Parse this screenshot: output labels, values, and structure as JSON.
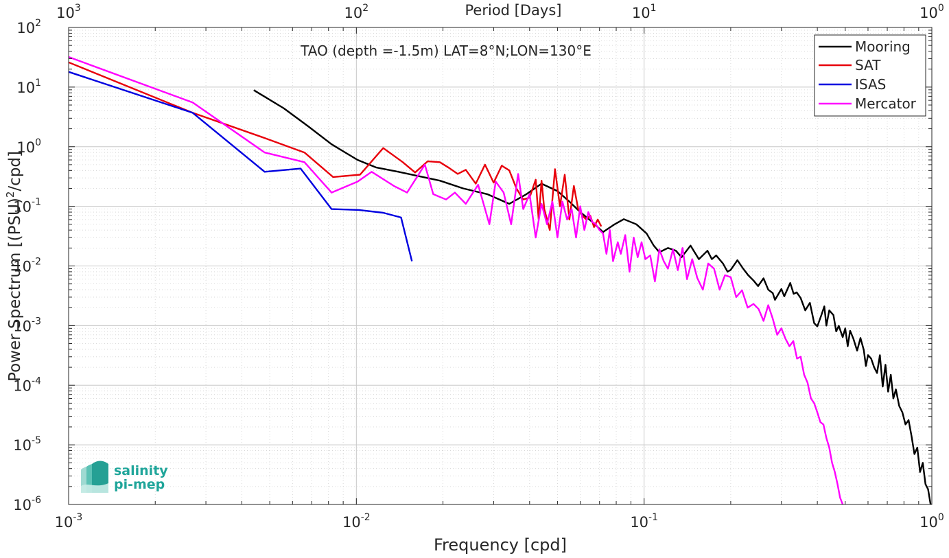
{
  "chart_data": {
    "type": "line",
    "title": "TAO (depth =-1.5m) LAT=8°N;LON=130°E",
    "xlabel": "Frequency [cpd]",
    "ylabel_main": "Power Spectrum [(PSU)",
    "ylabel_sup": "2",
    "ylabel_tail": "/cpd]",
    "x2label": "Period [Days]",
    "xscale": "log",
    "yscale": "log",
    "xlim": [
      0.001,
      1
    ],
    "ylim": [
      1e-06,
      100
    ],
    "grid": true,
    "legend_position": "top-right",
    "x_ticks": [
      {
        "base": "10",
        "exp": "-3",
        "value": 0.001
      },
      {
        "base": "10",
        "exp": "-2",
        "value": 0.01
      },
      {
        "base": "10",
        "exp": "-1",
        "value": 0.1
      },
      {
        "base": "10",
        "exp": "0",
        "value": 1
      }
    ],
    "x2_ticks": [
      {
        "base": "10",
        "exp": "3",
        "value": 0.001
      },
      {
        "base": "10",
        "exp": "2",
        "value": 0.01
      },
      {
        "base": "10",
        "exp": "1",
        "value": 0.1
      },
      {
        "base": "10",
        "exp": "0",
        "value": 1
      }
    ],
    "y_ticks": [
      {
        "base": "10",
        "exp": "2",
        "value": 100
      },
      {
        "base": "10",
        "exp": "1",
        "value": 10
      },
      {
        "base": "10",
        "exp": "0",
        "value": 1
      },
      {
        "base": "10",
        "exp": "-1",
        "value": 0.1
      },
      {
        "base": "10",
        "exp": "-2",
        "value": 0.01
      },
      {
        "base": "10",
        "exp": "-3",
        "value": 0.001
      },
      {
        "base": "10",
        "exp": "-4",
        "value": 0.0001
      },
      {
        "base": "10",
        "exp": "-5",
        "value": 1e-05
      },
      {
        "base": "10",
        "exp": "-6",
        "value": 1e-06
      }
    ],
    "series": [
      {
        "name": "Mooring",
        "color": "#000000",
        "x": [
          0.0044,
          0.0056,
          0.0068,
          0.0082,
          0.0101,
          0.0117,
          0.014,
          0.0165,
          0.0195,
          0.0235,
          0.0285,
          0.034,
          0.039,
          0.044,
          0.05,
          0.055,
          0.06,
          0.066,
          0.072,
          0.079,
          0.085,
          0.094,
          0.102,
          0.108,
          0.113,
          0.121,
          0.129,
          0.135,
          0.145,
          0.155,
          0.166,
          0.172,
          0.178,
          0.188,
          0.195,
          0.2,
          0.211,
          0.221,
          0.23,
          0.24,
          0.249,
          0.26,
          0.27,
          0.28,
          0.285,
          0.3,
          0.307,
          0.322,
          0.331,
          0.339,
          0.35,
          0.363,
          0.377,
          0.39,
          0.4,
          0.413,
          0.423,
          0.43,
          0.44,
          0.455,
          0.465,
          0.475,
          0.49,
          0.5,
          0.51,
          0.52,
          0.534,
          0.55,
          0.565,
          0.58,
          0.59,
          0.6,
          0.615,
          0.63,
          0.645,
          0.66,
          0.675,
          0.69,
          0.705,
          0.72,
          0.735,
          0.75,
          0.77,
          0.79,
          0.81,
          0.83,
          0.85,
          0.87,
          0.89,
          0.91,
          0.93,
          0.95,
          0.97,
          0.99
        ],
        "y": [
          8.9,
          4.4,
          2.2,
          1.1,
          0.6,
          0.45,
          0.38,
          0.32,
          0.27,
          0.2,
          0.16,
          0.11,
          0.16,
          0.24,
          0.18,
          0.12,
          0.08,
          0.055,
          0.037,
          0.05,
          0.061,
          0.05,
          0.035,
          0.022,
          0.017,
          0.02,
          0.018,
          0.014,
          0.022,
          0.013,
          0.018,
          0.013,
          0.015,
          0.011,
          0.008,
          0.0086,
          0.0125,
          0.009,
          0.007,
          0.0057,
          0.0046,
          0.0062,
          0.004,
          0.0035,
          0.0027,
          0.0041,
          0.0031,
          0.0052,
          0.0034,
          0.0036,
          0.0029,
          0.0018,
          0.0024,
          0.0011,
          0.00097,
          0.0015,
          0.0021,
          0.001,
          0.0018,
          0.0015,
          0.0008,
          0.00099,
          0.00064,
          0.0009,
          0.00045,
          0.00082,
          0.0006,
          0.00038,
          0.00062,
          0.00039,
          0.00021,
          0.00032,
          0.00028,
          0.0002,
          0.00016,
          0.00032,
          9.5e-05,
          0.00022,
          7.8e-05,
          0.00015,
          6e-05,
          8.5e-05,
          4.5e-05,
          3.5e-05,
          2.2e-05,
          2.6e-05,
          1.4e-05,
          7e-06,
          9e-06,
          3.5e-06,
          5e-06,
          2.2e-06,
          1.8e-06,
          1e-06
        ]
      },
      {
        "name": "SAT",
        "color": "#e8000b",
        "x": [
          0.001,
          0.0027,
          0.0048,
          0.0066,
          0.0083,
          0.0103,
          0.0124,
          0.0145,
          0.016,
          0.0177,
          0.0195,
          0.021,
          0.0225,
          0.024,
          0.026,
          0.028,
          0.03,
          0.032,
          0.034,
          0.036,
          0.038,
          0.04,
          0.042,
          0.043,
          0.044,
          0.045,
          0.047,
          0.049,
          0.051,
          0.053,
          0.055,
          0.057,
          0.059,
          0.061,
          0.063,
          0.065,
          0.067,
          0.069,
          0.071
        ],
        "y": [
          26,
          3.7,
          1.4,
          0.8,
          0.31,
          0.34,
          0.95,
          0.55,
          0.37,
          0.57,
          0.55,
          0.44,
          0.35,
          0.41,
          0.24,
          0.5,
          0.25,
          0.48,
          0.4,
          0.2,
          0.13,
          0.14,
          0.28,
          0.06,
          0.27,
          0.09,
          0.04,
          0.42,
          0.1,
          0.34,
          0.06,
          0.22,
          0.09,
          0.07,
          0.06,
          0.07,
          0.045,
          0.06,
          0.046
        ]
      },
      {
        "name": "ISAS",
        "color": "#0000e0",
        "x": [
          0.001,
          0.0027,
          0.0048,
          0.0064,
          0.0082,
          0.0102,
          0.0124,
          0.0143,
          0.0156
        ],
        "y": [
          18,
          3.7,
          0.38,
          0.43,
          0.09,
          0.087,
          0.078,
          0.065,
          0.012
        ]
      },
      {
        "name": "Mercator",
        "color": "#ff00ff",
        "x": [
          0.001,
          0.0027,
          0.0048,
          0.0066,
          0.0082,
          0.0101,
          0.0113,
          0.0135,
          0.015,
          0.0173,
          0.0185,
          0.0205,
          0.022,
          0.024,
          0.0265,
          0.029,
          0.0305,
          0.0325,
          0.0345,
          0.0365,
          0.038,
          0.04,
          0.042,
          0.044,
          0.046,
          0.048,
          0.05,
          0.052,
          0.054,
          0.056,
          0.058,
          0.06,
          0.062,
          0.064,
          0.066,
          0.068,
          0.07,
          0.072,
          0.074,
          0.076,
          0.078,
          0.081,
          0.083,
          0.086,
          0.089,
          0.092,
          0.095,
          0.098,
          0.101,
          0.105,
          0.109,
          0.113,
          0.117,
          0.121,
          0.126,
          0.131,
          0.136,
          0.141,
          0.147,
          0.153,
          0.16,
          0.167,
          0.175,
          0.183,
          0.191,
          0.2,
          0.209,
          0.219,
          0.229,
          0.24,
          0.25,
          0.26,
          0.27,
          0.28,
          0.29,
          0.3,
          0.31,
          0.32,
          0.33,
          0.34,
          0.35,
          0.36,
          0.37,
          0.38,
          0.39,
          0.4,
          0.41,
          0.42,
          0.43,
          0.44,
          0.45,
          0.46,
          0.47,
          0.48,
          0.49
        ],
        "y": [
          32,
          5.5,
          0.8,
          0.55,
          0.17,
          0.26,
          0.38,
          0.22,
          0.17,
          0.5,
          0.16,
          0.13,
          0.17,
          0.11,
          0.23,
          0.05,
          0.26,
          0.17,
          0.05,
          0.35,
          0.09,
          0.16,
          0.03,
          0.11,
          0.05,
          0.12,
          0.03,
          0.12,
          0.06,
          0.09,
          0.03,
          0.1,
          0.04,
          0.08,
          0.055,
          0.05,
          0.04,
          0.035,
          0.016,
          0.04,
          0.012,
          0.025,
          0.016,
          0.033,
          0.008,
          0.03,
          0.014,
          0.025,
          0.013,
          0.015,
          0.0055,
          0.019,
          0.012,
          0.009,
          0.019,
          0.0085,
          0.02,
          0.006,
          0.013,
          0.0063,
          0.004,
          0.011,
          0.009,
          0.004,
          0.007,
          0.0065,
          0.003,
          0.0039,
          0.002,
          0.0023,
          0.0019,
          0.0012,
          0.0022,
          0.0013,
          0.0007,
          0.0009,
          0.0006,
          0.00045,
          0.00055,
          0.00028,
          0.0003,
          0.00015,
          0.00011,
          6e-05,
          5e-05,
          3.5e-05,
          2.4e-05,
          2.2e-05,
          1.3e-05,
          9e-06,
          5e-06,
          3.5e-06,
          2.2e-06,
          1.3e-06,
          1e-06
        ]
      }
    ]
  },
  "logo": {
    "line1": "salinity",
    "line2": "pi-mep"
  }
}
